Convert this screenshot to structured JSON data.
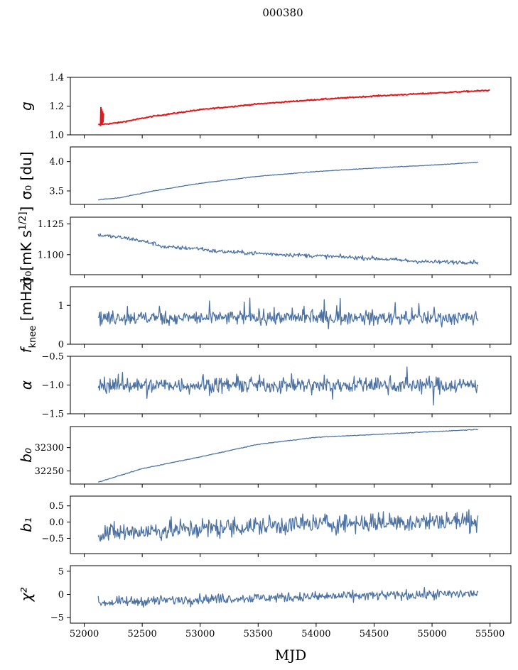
{
  "title": "000380",
  "xlabel": "MJD",
  "chart_data": {
    "type": "line",
    "title": "000380",
    "xlabel": "MJD",
    "xlim": [
      51880,
      55680
    ],
    "xticks": [
      52000,
      52500,
      53000,
      53500,
      54000,
      54500,
      55000,
      55500
    ],
    "x_start": 52120,
    "panels": [
      {
        "id": "g",
        "ylabel": "g",
        "ylim": [
          1.0,
          1.4
        ],
        "yticks": [
          1.0,
          1.2,
          1.4
        ],
        "yticklabels": [
          "1.0",
          "1.2",
          "1.4"
        ],
        "x_end": 55500,
        "color": "#e31a1c",
        "trend": [
          [
            52120,
            1.07
          ],
          [
            52300,
            1.085
          ],
          [
            52600,
            1.13
          ],
          [
            53000,
            1.175
          ],
          [
            53500,
            1.215
          ],
          [
            54000,
            1.245
          ],
          [
            54500,
            1.27
          ],
          [
            55000,
            1.29
          ],
          [
            55500,
            1.31
          ]
        ],
        "noise": 0.003,
        "spike": {
          "x": 52140,
          "y_min": 1.06,
          "y_max": 1.2
        }
      },
      {
        "id": "sigma0_du",
        "ylabel": "σ₀ [du]",
        "ylim": [
          3.27,
          4.25
        ],
        "yticks": [
          3.5,
          4.0
        ],
        "yticklabels": [
          "3.5",
          "4.0"
        ],
        "x_end": 55400,
        "color": "#4c72a4",
        "trend": [
          [
            52120,
            3.35
          ],
          [
            52300,
            3.38
          ],
          [
            52600,
            3.5
          ],
          [
            53000,
            3.63
          ],
          [
            53500,
            3.75
          ],
          [
            54000,
            3.83
          ],
          [
            54500,
            3.89
          ],
          [
            55000,
            3.94
          ],
          [
            55400,
            3.99
          ]
        ],
        "noise": 0.004
      },
      {
        "id": "sigma0_mk",
        "ylabel": "σ₀[mK s^1/2]",
        "ylim": [
          1.0837,
          1.1305
        ],
        "yticks": [
          1.1,
          1.125
        ],
        "yticklabels": [
          "1.100",
          "1.125"
        ],
        "x_end": 55400,
        "color": "#4c72a4",
        "trend": [
          [
            52120,
            1.116
          ],
          [
            52400,
            1.113
          ],
          [
            52600,
            1.109
          ],
          [
            52700,
            1.106
          ],
          [
            53000,
            1.105
          ],
          [
            53100,
            1.103
          ],
          [
            53500,
            1.101
          ],
          [
            54000,
            1.099
          ],
          [
            54500,
            1.097
          ],
          [
            54800,
            1.095
          ],
          [
            55000,
            1.094
          ],
          [
            55400,
            1.094
          ]
        ],
        "noise": 0.0012
      },
      {
        "id": "fknee",
        "ylabel": "f_knee [mHz]",
        "ylim": [
          0,
          1.48
        ],
        "yticks": [
          0,
          1
        ],
        "yticklabels": [
          "0",
          "1"
        ],
        "x_end": 55400,
        "color": "#4c72a4",
        "trend": [
          [
            52120,
            0.68
          ],
          [
            55400,
            0.68
          ]
        ],
        "noise": 0.13
      },
      {
        "id": "alpha",
        "ylabel": "α",
        "ylim": [
          -1.5,
          -0.5
        ],
        "yticks": [
          -1.5,
          -1.0,
          -0.5
        ],
        "yticklabels": [
          "−1.5",
          "−1.0",
          "−0.5"
        ],
        "x_end": 55400,
        "color": "#4c72a4",
        "trend": [
          [
            52120,
            -1.0
          ],
          [
            55400,
            -1.0
          ]
        ],
        "noise": 0.1
      },
      {
        "id": "b0",
        "ylabel": "b₀",
        "ylim": [
          32222,
          32345
        ],
        "yticks": [
          32250,
          32300
        ],
        "yticklabels": [
          "32250",
          "32300"
        ],
        "x_end": 55400,
        "color": "#4c72a4",
        "trend": [
          [
            52120,
            32226
          ],
          [
            52500,
            32255
          ],
          [
            53000,
            32280
          ],
          [
            53500,
            32307
          ],
          [
            54000,
            32322
          ],
          [
            54500,
            32328
          ],
          [
            55000,
            32334
          ],
          [
            55400,
            32339
          ]
        ],
        "noise": 0.5
      },
      {
        "id": "b1",
        "ylabel": "b₁",
        "ylim": [
          -0.97,
          0.8
        ],
        "yticks": [
          -0.5,
          0.0,
          0.5
        ],
        "yticklabels": [
          "−0.5",
          "0.0",
          "0.5"
        ],
        "x_end": 55400,
        "color": "#4c72a4",
        "trend": [
          [
            52120,
            -0.35
          ],
          [
            53000,
            -0.2
          ],
          [
            54000,
            -0.05
          ],
          [
            55400,
            0.05
          ]
        ],
        "noise": 0.22
      },
      {
        "id": "chi2",
        "ylabel": "χ²",
        "ylim": [
          -6.2,
          6.2
        ],
        "yticks": [
          -5,
          0,
          5
        ],
        "yticklabels": [
          "−5",
          "0",
          "5"
        ],
        "x_end": 55400,
        "color": "#4c72a4",
        "trend": [
          [
            52120,
            -1.8
          ],
          [
            53000,
            -1.0
          ],
          [
            54000,
            -0.5
          ],
          [
            55400,
            0.2
          ]
        ],
        "noise": 0.75
      }
    ]
  }
}
